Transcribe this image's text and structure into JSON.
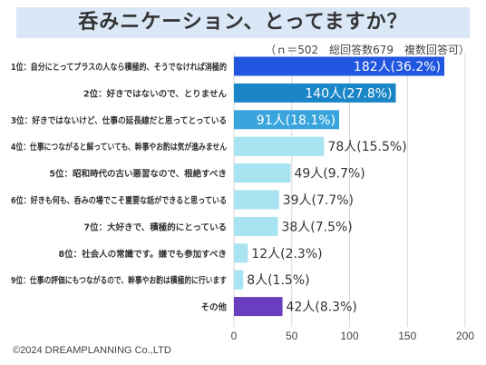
{
  "title": "呑みニケーション、とってますか？",
  "note": "（ｎ＝502　総回答数679　複数回答可）",
  "footer": "©2024 DREAMPLANNING Co.,LTD",
  "chart_data": {
    "type": "bar",
    "orientation": "horizontal",
    "categories": [
      "1位：自分にとってプラスの人なら積極的、そうでなければ消極的",
      "2位：好きではないので、とりません",
      "3位：好きではないけど、仕事の延長線だと思ってとっている",
      "4位：仕事につながると解っていても、幹事やお酌は気が進みません",
      "5位：昭和時代の古い悪習なので、根絶すべき",
      "6位：好きも何も、呑みの場でこそ重要な話ができると思っている",
      "7位：大好きで、積極的にとっている",
      "8位：社会人の常識です。嫌でも参加すべき",
      "9位：仕事の評価にもつながるので、幹事やお酌は積極的に行います",
      "その他"
    ],
    "values": [
      182,
      140,
      91,
      78,
      49,
      39,
      38,
      12,
      8,
      42
    ],
    "labels": [
      "182人(36.2%)",
      "140人(27.8%)",
      "91人(18.1%)",
      "78人(15.5%)",
      "49人(9.7%)",
      "39人(7.7%)",
      "38人(7.5%)",
      "12人(2.3%)",
      "8人(1.5%)",
      "42人(8.3%)"
    ],
    "colors": [
      "#2156e0",
      "#1a86c8",
      "#3aa5dc",
      "#a8e3f1",
      "#a8e3f1",
      "#a8e3f1",
      "#a8e3f1",
      "#a8e3f1",
      "#a8e3f1",
      "#6a3fbf"
    ],
    "label_inside": [
      true,
      true,
      true,
      false,
      false,
      false,
      false,
      false,
      false,
      false
    ],
    "xlim": [
      0,
      200
    ],
    "xticks": [
      0,
      50,
      100,
      150,
      200
    ],
    "grid": true
  }
}
